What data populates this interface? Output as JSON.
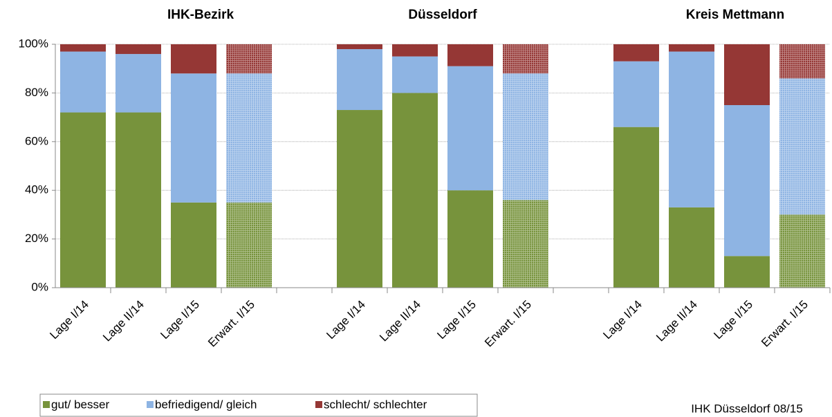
{
  "chart_data": {
    "type": "stacked_bar",
    "annotations": [
      "IHK-Bezirk",
      "Düsseldorf",
      "Kreis Mettmann"
    ],
    "source": "IHK Düsseldorf 08/15",
    "categories": [
      "Lage I/14",
      "Lage II/14",
      "Lage I/15",
      "Erwart. I/15",
      null,
      "Lage I/14",
      "Lage II/14",
      "Lage I/15",
      "Erwart. I/15",
      null,
      "Lage I/14",
      "Lage II/14",
      "Lage I/15",
      "Erwart. I/15"
    ],
    "hatched": [
      false,
      false,
      false,
      true,
      false,
      false,
      false,
      false,
      true,
      false,
      false,
      false,
      false,
      true
    ],
    "series": [
      {
        "name": "gut/ besser",
        "color": "#77933c",
        "values": [
          72,
          72,
          35,
          35,
          null,
          73,
          80,
          40,
          36,
          null,
          66,
          33,
          13,
          30
        ]
      },
      {
        "name": "befriedigend/ gleich",
        "color": "#8eb4e3",
        "values": [
          25,
          24,
          53,
          53,
          null,
          25,
          15,
          51,
          52,
          null,
          27,
          64,
          62,
          56
        ]
      },
      {
        "name": "schlecht/ schlechter",
        "color": "#953735",
        "values": [
          3,
          4,
          12,
          12,
          null,
          2,
          5,
          9,
          12,
          null,
          7,
          3,
          25,
          14
        ]
      }
    ],
    "ylim": [
      0,
      100
    ],
    "yticks": [
      {
        "value": 0,
        "label": "0%"
      },
      {
        "value": 20,
        "label": "20%"
      },
      {
        "value": 40,
        "label": "40%"
      },
      {
        "value": 60,
        "label": "60%"
      },
      {
        "value": 80,
        "label": "80%"
      },
      {
        "value": 100,
        "label": "100%"
      }
    ],
    "grid": true,
    "legend": "bottom-left"
  }
}
